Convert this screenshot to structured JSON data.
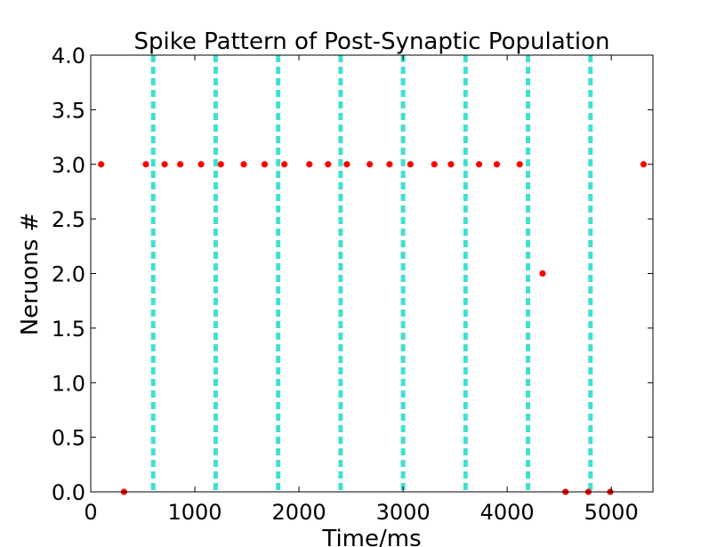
{
  "chart_data": {
    "type": "scatter",
    "title": "Spike Pattern of Post-Synaptic Population",
    "xlabel": "Time/ms",
    "ylabel": "Neruons #",
    "xlim": [
      0,
      5400
    ],
    "ylim": [
      0,
      4.0
    ],
    "x_ticks": [
      0,
      1000,
      2000,
      3000,
      4000,
      5000
    ],
    "x_tick_labels": [
      "0",
      "1000",
      "2000",
      "3000",
      "4000",
      "5000"
    ],
    "y_ticks": [
      0,
      0.5,
      1.0,
      1.5,
      2.0,
      2.5,
      3.0,
      3.5,
      4.0
    ],
    "y_tick_labels": [
      "0.0",
      "0.5",
      "1.0",
      "1.5",
      "2.0",
      "2.5",
      "3.0",
      "3.5",
      "4.0"
    ],
    "grid": false,
    "colors": {
      "points": "#ff0000",
      "vlines": "#40e0d0"
    },
    "vlines": [
      600,
      1200,
      1800,
      2400,
      3000,
      3600,
      4200,
      4800
    ],
    "points": [
      {
        "x": 100,
        "y": 3
      },
      {
        "x": 320,
        "y": 0
      },
      {
        "x": 530,
        "y": 3
      },
      {
        "x": 710,
        "y": 3
      },
      {
        "x": 860,
        "y": 3
      },
      {
        "x": 1060,
        "y": 3
      },
      {
        "x": 1250,
        "y": 3
      },
      {
        "x": 1470,
        "y": 3
      },
      {
        "x": 1670,
        "y": 3
      },
      {
        "x": 1860,
        "y": 3
      },
      {
        "x": 2100,
        "y": 3
      },
      {
        "x": 2280,
        "y": 3
      },
      {
        "x": 2460,
        "y": 3
      },
      {
        "x": 2680,
        "y": 3
      },
      {
        "x": 2870,
        "y": 3
      },
      {
        "x": 3070,
        "y": 3
      },
      {
        "x": 3300,
        "y": 3
      },
      {
        "x": 3460,
        "y": 3
      },
      {
        "x": 3730,
        "y": 3
      },
      {
        "x": 3900,
        "y": 3
      },
      {
        "x": 4120,
        "y": 3
      },
      {
        "x": 4340,
        "y": 2
      },
      {
        "x": 4560,
        "y": 0
      },
      {
        "x": 4780,
        "y": 0
      },
      {
        "x": 4990,
        "y": 0
      },
      {
        "x": 5310,
        "y": 3
      }
    ]
  }
}
